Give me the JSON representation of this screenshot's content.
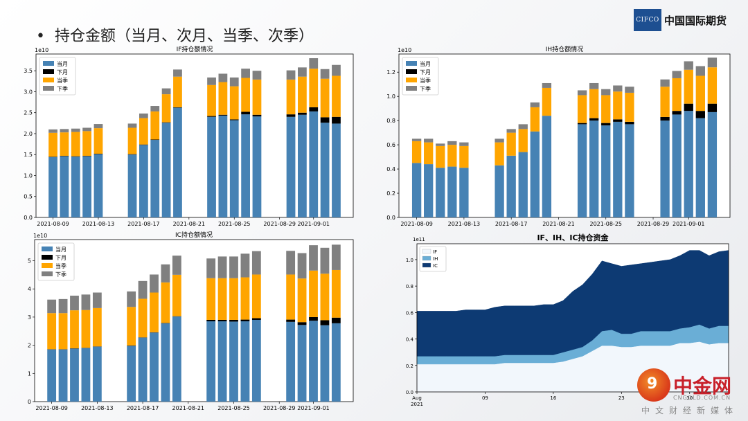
{
  "slide": {
    "bullet": "•",
    "title": "持仓金额（当月、次月、当季、次季）",
    "logo": {
      "mark": "CIFCO",
      "name": "中国国际期货"
    },
    "watermark": {
      "name": "中金网",
      "url": "CNGOLD.COM.CN",
      "sub": "中文财经新媒体"
    }
  },
  "colors": {
    "current_month": "#4682b4",
    "next_month": "#000000",
    "current_quarter": "#ffa500",
    "next_quarter": "#808080",
    "area_if": "#f2f7fc",
    "area_ih": "#6aaed6",
    "area_ic": "#0d3a73"
  },
  "chart_data": [
    {
      "type": "bar",
      "stacked": true,
      "title": "IF持仓额情况",
      "exponent": "1e10",
      "ylim": [
        0,
        3.9
      ],
      "yticks": [
        "0.0",
        "0.5",
        "1.0",
        "1.5",
        "2.0",
        "2.5",
        "3.0",
        "3.5"
      ],
      "ytick_values": [
        0,
        0.5,
        1.0,
        1.5,
        2.0,
        2.5,
        3.0,
        3.5
      ],
      "xticks": [
        "2021-08-09",
        "2021-08-13",
        "2021-08-17",
        "2021-08-21",
        "2021-08-25",
        "2021-08-29",
        "2021-09-01"
      ],
      "xtick_days": [
        9,
        13,
        17,
        21,
        25,
        29,
        32
      ],
      "dates_day_index": [
        9,
        10,
        11,
        12,
        13,
        16,
        17,
        18,
        19,
        20,
        23,
        24,
        25,
        26,
        27,
        30,
        31,
        32,
        33,
        34
      ],
      "legend": [
        "当月",
        "下月",
        "当季",
        "下季"
      ],
      "legend_position": "top-left",
      "series": [
        {
          "name": "当月",
          "values": [
            1.44,
            1.46,
            1.45,
            1.46,
            1.51,
            1.5,
            1.73,
            1.85,
            2.26,
            2.62,
            2.4,
            2.43,
            2.32,
            2.46,
            2.41,
            2.4,
            2.45,
            2.53,
            2.26,
            2.24
          ]
        },
        {
          "name": "下月",
          "values": [
            0.01,
            0.01,
            0.01,
            0.01,
            0.01,
            0.01,
            0.01,
            0.01,
            0.01,
            0.01,
            0.02,
            0.02,
            0.02,
            0.06,
            0.04,
            0.06,
            0.05,
            0.1,
            0.13,
            0.16
          ]
        },
        {
          "name": "当季",
          "values": [
            0.57,
            0.56,
            0.58,
            0.59,
            0.61,
            0.63,
            0.63,
            0.67,
            0.67,
            0.73,
            0.74,
            0.78,
            0.79,
            0.81,
            0.84,
            0.83,
            0.86,
            0.92,
            0.92,
            0.98
          ]
        },
        {
          "name": "下季",
          "values": [
            0.08,
            0.08,
            0.08,
            0.08,
            0.1,
            0.1,
            0.11,
            0.13,
            0.14,
            0.17,
            0.18,
            0.2,
            0.21,
            0.22,
            0.21,
            0.22,
            0.22,
            0.25,
            0.23,
            0.26
          ]
        }
      ]
    },
    {
      "type": "bar",
      "stacked": true,
      "title": "IH持仓额情况",
      "exponent": "1e10",
      "ylim": [
        0,
        1.35
      ],
      "yticks": [
        "0.0",
        "0.2",
        "0.4",
        "0.6",
        "0.8",
        "1.0",
        "1.2"
      ],
      "ytick_values": [
        0,
        0.2,
        0.4,
        0.6,
        0.8,
        1.0,
        1.2
      ],
      "xticks": [
        "2021-08-09",
        "2021-08-13",
        "2021-08-17",
        "2021-08-21",
        "2021-08-25",
        "2021-08-29",
        "2021-09-01"
      ],
      "xtick_days": [
        9,
        13,
        17,
        21,
        25,
        29,
        32
      ],
      "dates_day_index": [
        9,
        10,
        11,
        12,
        13,
        16,
        17,
        18,
        19,
        20,
        23,
        24,
        25,
        26,
        27,
        30,
        31,
        32,
        33,
        34
      ],
      "legend": [
        "当月",
        "下月",
        "当季",
        "下季"
      ],
      "legend_position": "top-left",
      "series": [
        {
          "name": "当月",
          "values": [
            0.45,
            0.44,
            0.41,
            0.42,
            0.41,
            0.43,
            0.51,
            0.54,
            0.71,
            0.84,
            0.77,
            0.8,
            0.76,
            0.79,
            0.77,
            0.8,
            0.85,
            0.88,
            0.82,
            0.87
          ]
        },
        {
          "name": "下月",
          "values": [
            0.0,
            0.0,
            0.0,
            0.0,
            0.0,
            0.0,
            0.0,
            0.0,
            0.0,
            0.0,
            0.01,
            0.02,
            0.02,
            0.02,
            0.02,
            0.03,
            0.03,
            0.06,
            0.06,
            0.07
          ]
        },
        {
          "name": "当季",
          "values": [
            0.18,
            0.18,
            0.18,
            0.18,
            0.18,
            0.19,
            0.19,
            0.19,
            0.2,
            0.23,
            0.23,
            0.24,
            0.23,
            0.23,
            0.24,
            0.25,
            0.27,
            0.28,
            0.29,
            0.3
          ]
        },
        {
          "name": "下季",
          "values": [
            0.02,
            0.03,
            0.02,
            0.03,
            0.03,
            0.03,
            0.03,
            0.04,
            0.04,
            0.04,
            0.04,
            0.05,
            0.05,
            0.05,
            0.05,
            0.06,
            0.06,
            0.07,
            0.08,
            0.08
          ]
        }
      ]
    },
    {
      "type": "bar",
      "stacked": true,
      "title": "IC持仓额情况",
      "exponent": "1e10",
      "ylim": [
        0,
        5.75
      ],
      "yticks": [
        "0",
        "1",
        "2",
        "3",
        "4",
        "5"
      ],
      "ytick_values": [
        0,
        1,
        2,
        3,
        4,
        5
      ],
      "xticks": [
        "2021-08-09",
        "2021-08-13",
        "2021-08-17",
        "2021-08-21",
        "2021-08-25",
        "2021-08-29",
        "2021-09-01"
      ],
      "xtick_days": [
        9,
        13,
        17,
        21,
        25,
        29,
        32
      ],
      "dates_day_index": [
        9,
        10,
        11,
        12,
        13,
        16,
        17,
        18,
        19,
        20,
        23,
        24,
        25,
        26,
        27,
        30,
        31,
        32,
        33,
        34
      ],
      "legend": [
        "当月",
        "下月",
        "当季",
        "下季"
      ],
      "legend_position": "top-left",
      "series": [
        {
          "name": "当月",
          "values": [
            1.85,
            1.85,
            1.88,
            1.9,
            1.95,
            1.98,
            2.27,
            2.45,
            2.78,
            3.02,
            2.85,
            2.85,
            2.84,
            2.85,
            2.9,
            2.83,
            2.72,
            2.87,
            2.71,
            2.78
          ]
        },
        {
          "name": "下月",
          "values": [
            0.01,
            0.01,
            0.01,
            0.01,
            0.01,
            0.01,
            0.01,
            0.01,
            0.01,
            0.01,
            0.05,
            0.05,
            0.06,
            0.06,
            0.06,
            0.08,
            0.1,
            0.13,
            0.18,
            0.2
          ]
        },
        {
          "name": "当季",
          "values": [
            1.28,
            1.28,
            1.35,
            1.34,
            1.36,
            1.37,
            1.37,
            1.41,
            1.44,
            1.47,
            1.48,
            1.48,
            1.48,
            1.5,
            1.55,
            1.6,
            1.55,
            1.65,
            1.65,
            1.69
          ]
        },
        {
          "name": "下季",
          "values": [
            0.48,
            0.5,
            0.52,
            0.55,
            0.55,
            0.55,
            0.63,
            0.64,
            0.64,
            0.68,
            0.7,
            0.77,
            0.77,
            0.84,
            0.83,
            0.84,
            0.9,
            0.9,
            0.92,
            0.9
          ]
        }
      ]
    },
    {
      "type": "area",
      "stacked": true,
      "title": "IF、IH、IC持仓资金",
      "exponent": "1e11",
      "ylim": [
        0,
        1.12
      ],
      "yticks": [
        "0.0",
        "0.2",
        "0.4",
        "0.6",
        "0.8",
        "1.0"
      ],
      "ytick_values": [
        0,
        0.2,
        0.4,
        0.6,
        0.8,
        1.0
      ],
      "xticks": [
        "Aug\n2021",
        "09",
        "16",
        "23",
        "30"
      ],
      "xtick_days": [
        2,
        9,
        16,
        23,
        30
      ],
      "x_day_index": [
        2,
        3,
        4,
        5,
        6,
        7,
        8,
        9,
        10,
        11,
        12,
        13,
        14,
        15,
        16,
        17,
        18,
        19,
        20,
        21,
        22,
        23,
        24,
        25,
        26,
        27,
        28,
        29,
        30,
        31,
        32,
        33,
        34
      ],
      "legend": [
        "IF",
        "IH",
        "IC"
      ],
      "legend_position": "top-left",
      "series": [
        {
          "name": "IF",
          "values": [
            0.21,
            0.21,
            0.21,
            0.21,
            0.21,
            0.21,
            0.21,
            0.21,
            0.21,
            0.22,
            0.22,
            0.22,
            0.22,
            0.22,
            0.22,
            0.23,
            0.25,
            0.27,
            0.31,
            0.35,
            0.35,
            0.34,
            0.34,
            0.35,
            0.35,
            0.35,
            0.35,
            0.37,
            0.37,
            0.38,
            0.36,
            0.37,
            0.37
          ]
        },
        {
          "name": "IH",
          "values": [
            0.06,
            0.06,
            0.06,
            0.06,
            0.06,
            0.06,
            0.06,
            0.06,
            0.06,
            0.06,
            0.06,
            0.06,
            0.06,
            0.06,
            0.06,
            0.07,
            0.07,
            0.07,
            0.08,
            0.11,
            0.12,
            0.1,
            0.1,
            0.11,
            0.11,
            0.11,
            0.11,
            0.11,
            0.12,
            0.13,
            0.12,
            0.13,
            0.13
          ]
        },
        {
          "name": "IC",
          "values": [
            0.34,
            0.34,
            0.34,
            0.34,
            0.34,
            0.35,
            0.35,
            0.35,
            0.37,
            0.37,
            0.37,
            0.37,
            0.37,
            0.38,
            0.38,
            0.39,
            0.44,
            0.47,
            0.5,
            0.53,
            0.5,
            0.51,
            0.52,
            0.51,
            0.52,
            0.53,
            0.54,
            0.55,
            0.58,
            0.56,
            0.55,
            0.56,
            0.57
          ]
        }
      ]
    }
  ]
}
